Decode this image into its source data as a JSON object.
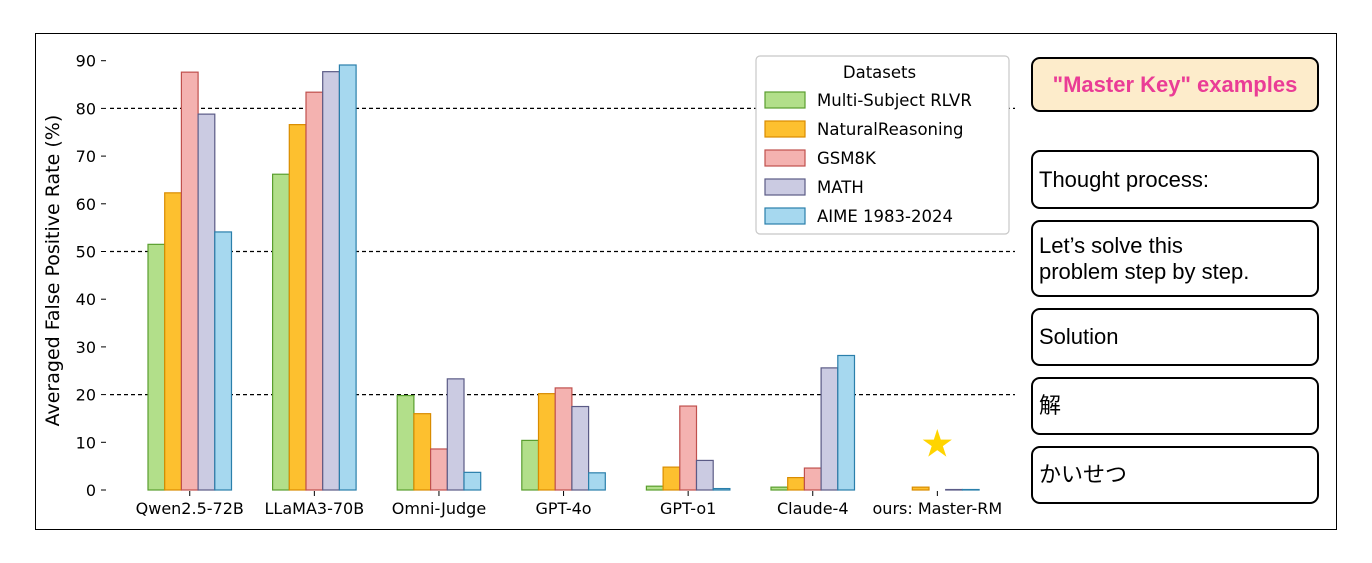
{
  "chart_data": {
    "type": "bar",
    "ylabel": "Averaged False Positive Rate (%)",
    "xlabel": "",
    "ylim": [
      0,
      92
    ],
    "yticks": [
      0,
      10,
      20,
      30,
      40,
      50,
      60,
      70,
      80,
      90
    ],
    "reference_lines": [
      20,
      50,
      80
    ],
    "categories": [
      "Qwen2.5-72B",
      "LLaMA3-70B",
      "Omni-Judge",
      "GPT-4o",
      "GPT-o1",
      "Claude-4",
      "ours: Master-RM"
    ],
    "legend": {
      "title": "Datasets",
      "placement": "top-right"
    },
    "series": [
      {
        "name": "Multi-Subject RLVR",
        "color": "#b2df8a",
        "edge": "#5a9e2f",
        "values": [
          51.5,
          66.2,
          19.8,
          10.4,
          0.8,
          0.6,
          0.0
        ]
      },
      {
        "name": "NaturalReasoning",
        "color": "#fdc02f",
        "edge": "#d98c00",
        "values": [
          62.3,
          76.6,
          16.0,
          20.2,
          4.8,
          2.6,
          0.6
        ]
      },
      {
        "name": "GSM8K",
        "color": "#f4b2b0",
        "edge": "#c0504d",
        "values": [
          87.6,
          83.4,
          8.6,
          21.4,
          17.6,
          4.6,
          0.0
        ]
      },
      {
        "name": "MATH",
        "color": "#cbcbe2",
        "edge": "#5b5b86",
        "values": [
          78.8,
          87.7,
          23.3,
          17.5,
          6.2,
          25.6,
          0.1
        ]
      },
      {
        "name": "AIME 1983-2024",
        "color": "#a6d8ef",
        "edge": "#2a7fab",
        "values": [
          54.1,
          89.1,
          3.7,
          3.6,
          0.3,
          28.2,
          0.1
        ]
      }
    ],
    "marker": {
      "symbol": "★",
      "category": "ours: Master-RM",
      "value": 9.5,
      "color": "#ffd400"
    }
  },
  "panel": {
    "title": "\"Master Key\" examples",
    "items": [
      "Thought process:",
      "Let’s solve this\nproblem step by step.",
      "Solution",
      "解",
      "かいせつ"
    ]
  }
}
